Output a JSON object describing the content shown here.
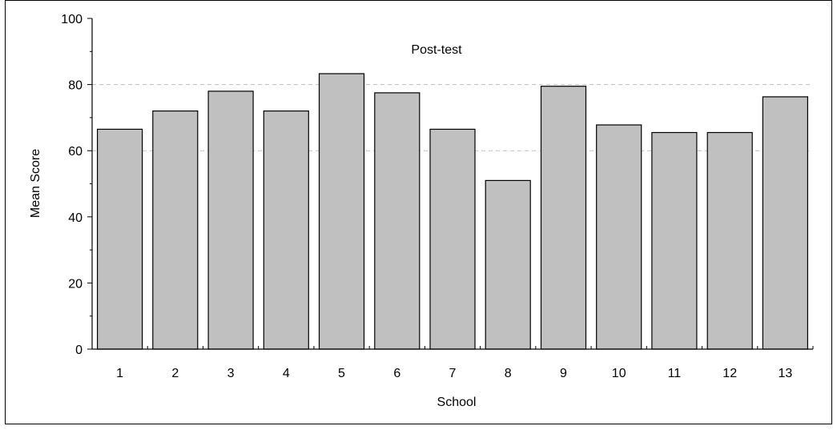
{
  "chart_data": {
    "type": "bar",
    "title": "Post-test",
    "xlabel": "School",
    "ylabel": "Mean Score",
    "categories": [
      "1",
      "2",
      "3",
      "4",
      "5",
      "6",
      "7",
      "8",
      "9",
      "10",
      "11",
      "12",
      "13"
    ],
    "values": [
      66.5,
      72,
      78,
      72,
      83.3,
      77.5,
      66.5,
      51,
      79.5,
      67.8,
      65.5,
      65.5,
      76.3
    ],
    "ylim": [
      0,
      100
    ],
    "yticks": [
      0,
      20,
      40,
      60,
      80,
      100
    ],
    "gridlines": [
      60,
      80
    ],
    "grid_style": "dashed",
    "legend": "none",
    "colors": {
      "bar_fill": "#c0c0c0",
      "bar_stroke": "#000000",
      "grid": "#bfbfbf",
      "axis": "#000000"
    }
  }
}
